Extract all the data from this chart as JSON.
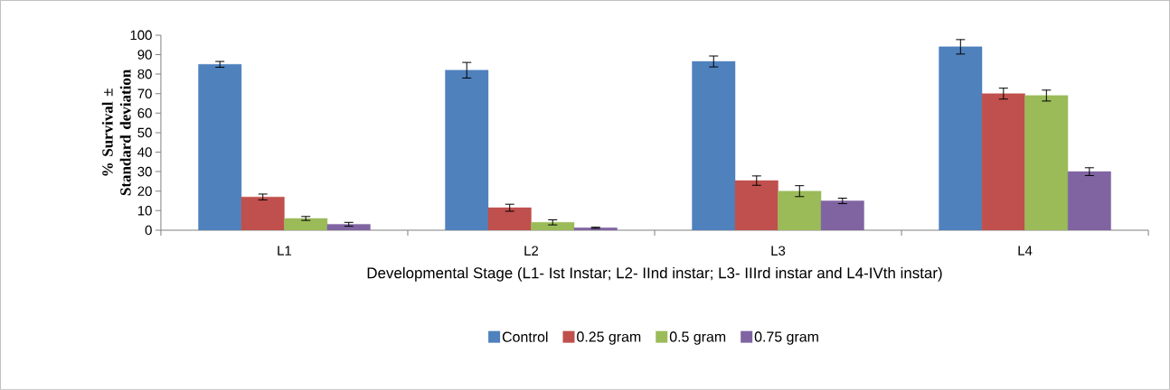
{
  "chart_data": {
    "type": "bar",
    "xlabel": "Developmental Stage (L1-  Ist Instar;  L2-  IInd  instar;  L3-  IIIrd  instar and  L4-IVth  instar)",
    "ylabel": "% Survival ± Standard deviation",
    "categories": [
      "L1",
      "L2",
      "L3",
      "L4"
    ],
    "series": [
      {
        "name": "Control",
        "color": "#4f81bd",
        "values": [
          85,
          82,
          86.5,
          94
        ],
        "errors": [
          1.5,
          4,
          2.8,
          3.7
        ]
      },
      {
        "name": "0.25 gram",
        "color": "#c0504d",
        "values": [
          17,
          11.5,
          25.4,
          70
        ],
        "errors": [
          1.5,
          1.8,
          2.4,
          2.8
        ]
      },
      {
        "name": "0.5 gram",
        "color": "#9bbb59",
        "values": [
          6,
          4,
          20,
          69
        ],
        "errors": [
          1,
          1.3,
          2.8,
          2.8
        ]
      },
      {
        "name": "0.75 gram",
        "color": "#8064a2",
        "values": [
          3,
          1.2,
          15,
          30
        ],
        "errors": [
          1,
          0.3,
          1.4,
          2
        ]
      }
    ],
    "ylim": [
      0,
      100
    ],
    "yticks": [
      0,
      10,
      20,
      30,
      40,
      50,
      60,
      70,
      80,
      90,
      100
    ],
    "legend": "bottom",
    "grid": false
  }
}
